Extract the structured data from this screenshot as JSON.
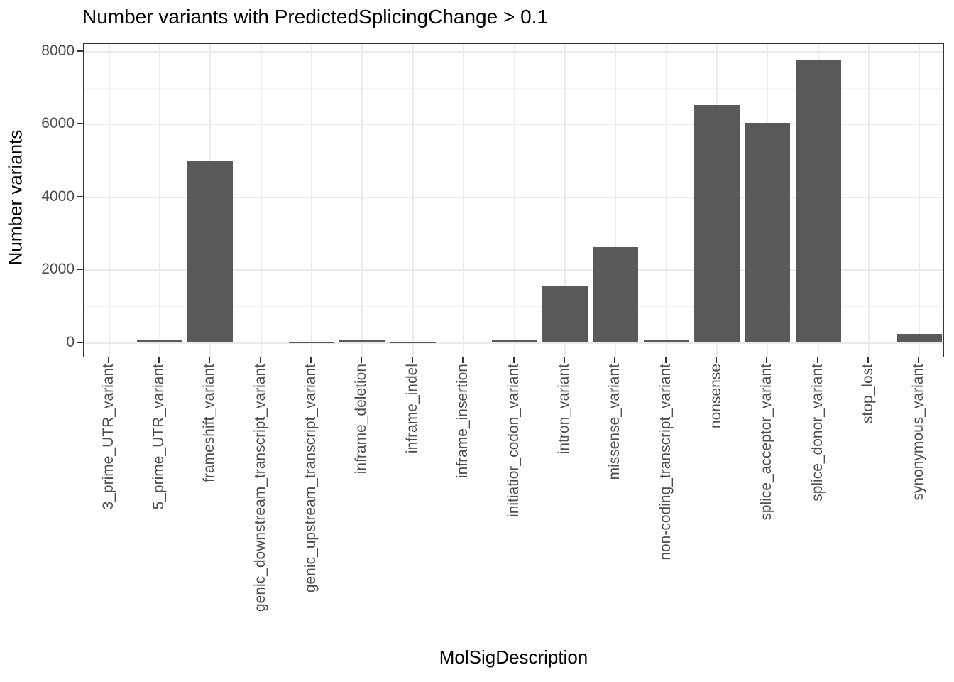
{
  "figure": {
    "title": "Number variants with PredictedSplicingChange > 0.1",
    "x_axis_title": "MolSigDescription",
    "y_axis_title": "Number variants"
  },
  "chart_data": {
    "type": "bar",
    "title": "Number variants with PredictedSplicingChange > 0.1",
    "xlabel": "MolSigDescription",
    "ylabel": "Number variants",
    "categories": [
      "3_prime_UTR_variant",
      "5_prime_UTR_variant",
      "frameshift_variant",
      "genic_downstream_transcript_variant",
      "genic_upstream_transcript_variant",
      "inframe_deletion",
      "inframe_indel",
      "inframe_insertion",
      "initiatior_codon_variant",
      "intron_variant",
      "missense_variant",
      "non-coding_transcript_variant",
      "nonsense",
      "splice_acceptor_variant",
      "splice_donor_variant",
      "stop_lost",
      "synonymous_variant"
    ],
    "values": [
      35,
      60,
      5010,
      25,
      5,
      90,
      5,
      25,
      80,
      1560,
      2650,
      70,
      6530,
      6040,
      7780,
      35,
      235
    ],
    "ylim": [
      0,
      8400
    ],
    "yticks": [
      0,
      2000,
      4000,
      6000,
      8000
    ],
    "yticks_minor": [
      1000,
      3000,
      5000,
      7000
    ],
    "grid": "horizontal major+minor, vertical major at category centers",
    "legend_position": "none",
    "bar_color": "#595959"
  },
  "colors": {
    "bar_fill": "#595959",
    "panel_border": "#333333",
    "grid_major": "#ebebeb",
    "grid_minor": "#f3f3f3",
    "tick_label": "#4d4d4d",
    "axis_text": "#000000",
    "background": "#ffffff"
  }
}
